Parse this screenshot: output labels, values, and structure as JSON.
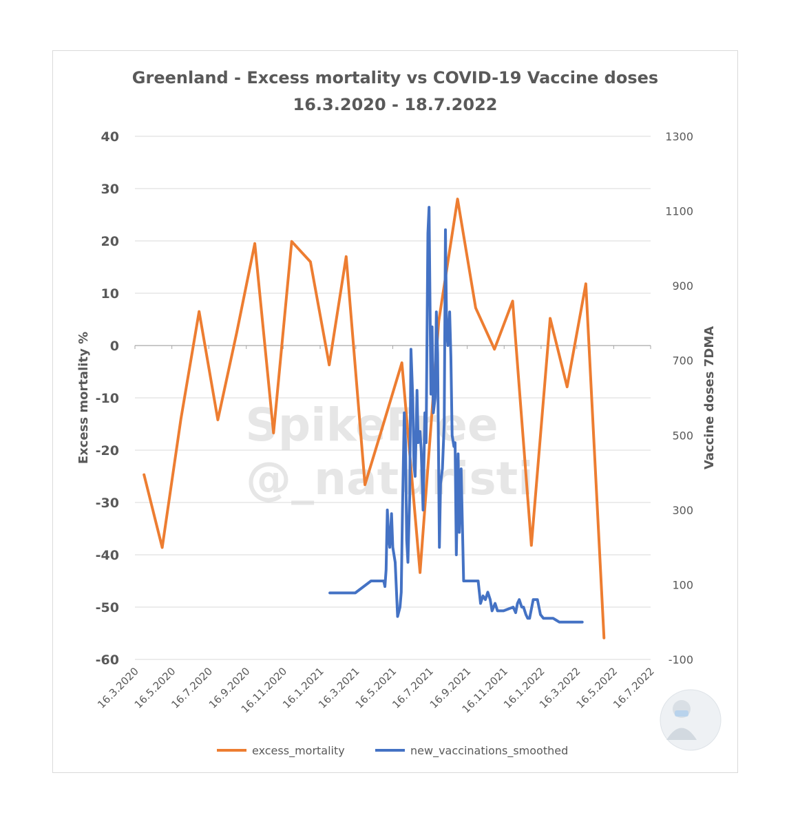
{
  "chart_data": {
    "type": "line",
    "title": "Greenland - Excess mortality vs COVID-19 Vaccine doses",
    "subtitle": "16.3.2020 - 18.7.2022",
    "ylabel": "Excess mortality %",
    "y2label": "Vaccine doses 7DMA",
    "ylim": [
      -60,
      40
    ],
    "y2lim": [
      -100,
      1300
    ],
    "yticks": [
      -60,
      -50,
      -40,
      -30,
      -20,
      -10,
      0,
      10,
      20,
      30,
      40
    ],
    "y2ticks": [
      -100,
      100,
      300,
      500,
      700,
      900,
      1100,
      1300
    ],
    "xlim": [
      "2020-03-16",
      "2022-07-16"
    ],
    "xticks": [
      "2020-03-16",
      "2020-05-16",
      "2020-07-16",
      "2020-09-16",
      "2020-11-16",
      "2021-01-16",
      "2021-03-16",
      "2021-05-16",
      "2021-07-16",
      "2021-09-16",
      "2021-11-16",
      "2022-01-16",
      "2022-03-16",
      "2022-05-16",
      "2022-07-16"
    ],
    "xtick_labels": [
      "16.3.2020",
      "16.5.2020",
      "16.7.2020",
      "16.9.2020",
      "16.11.2020",
      "16.1.2021",
      "16.3.2021",
      "16.5.2021",
      "16.7.2021",
      "16.9.2021",
      "16.11.2021",
      "16.1.2022",
      "16.3.2022",
      "16.5.2022",
      "16.7.2022"
    ],
    "grid": true,
    "legend": "bottom",
    "series": [
      {
        "name": "excess_mortality",
        "axis": "left",
        "color": "#ed7d31",
        "x": [
          "2020-03-31",
          "2020-04-30",
          "2020-05-31",
          "2020-06-30",
          "2020-07-31",
          "2020-08-31",
          "2020-09-30",
          "2020-10-31",
          "2020-11-30",
          "2020-12-31",
          "2021-01-31",
          "2021-02-28",
          "2021-03-31",
          "2021-04-30",
          "2021-05-31",
          "2021-06-30",
          "2021-07-31",
          "2021-08-31",
          "2021-09-30",
          "2021-10-31",
          "2021-11-30",
          "2021-12-31",
          "2022-01-31",
          "2022-02-28",
          "2022-03-31",
          "2022-04-30"
        ],
        "values": [
          -24.7,
          -38.6,
          -14,
          6.5,
          -14.2,
          2.4,
          19.5,
          -16.7,
          19.9,
          16,
          -3.7,
          17,
          -26.6,
          -15.2,
          -3.3,
          -43.4,
          4.7,
          28,
          7.2,
          -0.7,
          8.5,
          -38.2,
          5.2,
          -7.9,
          11.8,
          -55.9
        ]
      },
      {
        "name": "new_vaccinations_smoothed",
        "axis": "right",
        "color": "#4472c4",
        "x": [
          "2021-02-01",
          "2021-03-01",
          "2021-03-15",
          "2021-04-10",
          "2021-04-15",
          "2021-04-18",
          "2021-04-24",
          "2021-04-26",
          "2021-04-28",
          "2021-05-01",
          "2021-05-03",
          "2021-05-05",
          "2021-05-07",
          "2021-05-09",
          "2021-05-11",
          "2021-05-14",
          "2021-05-16",
          "2021-05-20",
          "2021-05-24",
          "2021-05-28",
          "2021-05-30",
          "2021-06-01",
          "2021-06-04",
          "2021-06-06",
          "2021-06-08",
          "2021-06-10",
          "2021-06-13",
          "2021-06-15",
          "2021-06-18",
          "2021-06-20",
          "2021-06-22",
          "2021-06-25",
          "2021-06-27",
          "2021-06-30",
          "2021-07-02",
          "2021-07-05",
          "2021-07-08",
          "2021-07-10",
          "2021-07-13",
          "2021-07-15",
          "2021-07-18",
          "2021-07-20",
          "2021-07-22",
          "2021-07-25",
          "2021-07-27",
          "2021-07-29",
          "2021-08-01",
          "2021-08-03",
          "2021-08-06",
          "2021-08-09",
          "2021-08-11",
          "2021-08-13",
          "2021-08-15",
          "2021-08-18",
          "2021-08-20",
          "2021-08-22",
          "2021-08-25",
          "2021-08-27",
          "2021-08-29",
          "2021-09-01",
          "2021-09-03",
          "2021-09-06",
          "2021-09-10",
          "2021-10-01",
          "2021-10-04",
          "2021-10-08",
          "2021-10-12",
          "2021-10-16",
          "2021-10-20",
          "2021-10-24",
          "2021-10-27",
          "2021-11-01",
          "2021-11-05",
          "2021-11-08",
          "2021-11-15",
          "2021-12-01",
          "2021-12-05",
          "2021-12-08",
          "2021-12-11",
          "2021-12-15",
          "2021-12-18",
          "2021-12-22",
          "2021-12-25",
          "2021-12-28",
          "2022-01-03",
          "2022-01-10",
          "2022-01-15",
          "2022-01-20",
          "2022-01-25",
          "2022-01-31",
          "2022-02-05",
          "2022-02-10",
          "2022-02-15",
          "2022-02-20",
          "2022-02-25",
          "2022-03-01",
          "2022-03-10",
          "2022-03-25"
        ],
        "values": [
          78,
          78,
          78,
          110,
          110,
          110,
          110,
          110,
          110,
          110,
          95,
          140,
          300,
          230,
          200,
          290,
          200,
          160,
          15,
          40,
          80,
          300,
          560,
          480,
          220,
          160,
          340,
          730,
          600,
          420,
          390,
          620,
          480,
          510,
          460,
          300,
          560,
          480,
          1040,
          1110,
          610,
          790,
          560,
          600,
          830,
          720,
          200,
          370,
          410,
          530,
          1050,
          780,
          740,
          830,
          710,
          500,
          470,
          480,
          180,
          450,
          240,
          410,
          110,
          110,
          110,
          50,
          70,
          60,
          80,
          60,
          30,
          50,
          30,
          30,
          30,
          40,
          25,
          50,
          60,
          40,
          40,
          20,
          10,
          10,
          60,
          60,
          20,
          10,
          10,
          10,
          10,
          5,
          0,
          0,
          0,
          0,
          0,
          0
        ]
      }
    ],
    "watermark_lines": [
      "SpikeFree",
      "@_naturisti"
    ]
  }
}
